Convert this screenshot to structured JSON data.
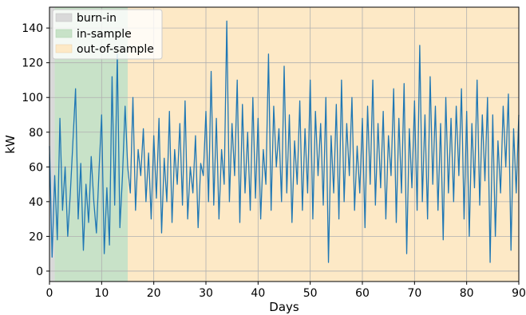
{
  "chart_data": {
    "type": "line",
    "xlabel": "Days",
    "ylabel": "kW",
    "xlim": [
      0,
      90
    ],
    "ylim": [
      -6,
      152
    ],
    "xticks": [
      0,
      10,
      20,
      30,
      40,
      50,
      60,
      70,
      80,
      90
    ],
    "yticks": [
      0,
      20,
      40,
      60,
      80,
      100,
      120,
      140
    ],
    "grid": true,
    "legend_position": "top-left",
    "line_color": "#1f77b4",
    "regions": [
      {
        "name": "burn-in",
        "start": 0,
        "end": 1,
        "color": "#d9d9d9"
      },
      {
        "name": "in-sample",
        "start": 1,
        "end": 15,
        "color": "#c8e2c8"
      },
      {
        "name": "out-of-sample",
        "start": 15,
        "end": 90,
        "color": "#fde9c6"
      }
    ],
    "series": [
      {
        "x": [
          0,
          0.5,
          1,
          1.5,
          2,
          2.5,
          3,
          3.5,
          4,
          4.5,
          5,
          5.5,
          6,
          6.5,
          7,
          7.5,
          8,
          8.5,
          9,
          9.5,
          10,
          10.5,
          11,
          11.5,
          12,
          12.5,
          13,
          13.5,
          14,
          14.5,
          15,
          15.5,
          16,
          16.5,
          17,
          17.5,
          18,
          18.5,
          19,
          19.5,
          20,
          20.5,
          21,
          21.5,
          22,
          22.5,
          23,
          23.5,
          24,
          24.5,
          25,
          25.5,
          26,
          26.5,
          27,
          27.5,
          28,
          28.5,
          29,
          29.5,
          30,
          30.5,
          31,
          31.5,
          32,
          32.5,
          33,
          33.5,
          34,
          34.5,
          35,
          35.5,
          36,
          36.5,
          37,
          37.5,
          38,
          38.5,
          39,
          39.5,
          40,
          40.5,
          41,
          41.5,
          42,
          42.5,
          43,
          43.5,
          44,
          44.5,
          45,
          45.5,
          46,
          46.5,
          47,
          47.5,
          48,
          48.5,
          49,
          49.5,
          50,
          50.5,
          51,
          51.5,
          52,
          52.5,
          53,
          53.5,
          54,
          54.5,
          55,
          55.5,
          56,
          56.5,
          57,
          57.5,
          58,
          58.5,
          59,
          59.5,
          60,
          60.5,
          61,
          61.5,
          62,
          62.5,
          63,
          63.5,
          64,
          64.5,
          65,
          65.5,
          66,
          66.5,
          67,
          67.5,
          68,
          68.5,
          69,
          69.5,
          70,
          70.5,
          71,
          71.5,
          72,
          72.5,
          73,
          73.5,
          74,
          74.5,
          75,
          75.5,
          76,
          76.5,
          77,
          77.5,
          78,
          78.5,
          79,
          79.5,
          80,
          80.5,
          81,
          81.5,
          82,
          82.5,
          83,
          83.5,
          84,
          84.5,
          85,
          85.5,
          86,
          86.5,
          87,
          87.5,
          88,
          88.5,
          89,
          89.5,
          90
        ],
        "values": [
          72,
          8,
          55,
          18,
          88,
          35,
          60,
          20,
          45,
          75,
          105,
          30,
          62,
          12,
          50,
          28,
          66,
          40,
          22,
          58,
          90,
          10,
          48,
          15,
          112,
          38,
          125,
          25,
          55,
          95,
          60,
          45,
          100,
          35,
          70,
          55,
          82,
          40,
          68,
          30,
          78,
          42,
          88,
          22,
          65,
          40,
          92,
          28,
          70,
          50,
          85,
          38,
          98,
          30,
          60,
          45,
          78,
          25,
          62,
          55,
          92,
          40,
          115,
          38,
          88,
          30,
          70,
          50,
          144,
          40,
          85,
          55,
          110,
          28,
          96,
          45,
          80,
          35,
          100,
          42,
          88,
          30,
          70,
          50,
          125,
          35,
          95,
          60,
          82,
          40,
          118,
          45,
          90,
          28,
          75,
          50,
          98,
          35,
          82,
          45,
          110,
          30,
          92,
          55,
          85,
          38,
          100,
          5,
          78,
          45,
          96,
          30,
          110,
          40,
          85,
          55,
          100,
          35,
          72,
          45,
          88,
          25,
          95,
          50,
          110,
          38,
          85,
          48,
          92,
          30,
          78,
          55,
          105,
          28,
          88,
          45,
          108,
          10,
          82,
          48,
          98,
          35,
          130,
          40,
          90,
          30,
          112,
          50,
          95,
          35,
          85,
          18,
          100,
          45,
          88,
          40,
          95,
          55,
          105,
          30,
          92,
          20,
          85,
          48,
          110,
          38,
          90,
          52,
          100,
          5,
          90,
          20,
          75,
          45,
          95,
          60,
          102,
          12,
          82,
          45,
          90
        ]
      }
    ]
  },
  "legend": {
    "items": [
      {
        "label": "burn-in",
        "color": "#d9d9d9"
      },
      {
        "label": "in-sample",
        "color": "#c8e2c8"
      },
      {
        "label": "out-of-sample",
        "color": "#fde9c6"
      }
    ]
  }
}
